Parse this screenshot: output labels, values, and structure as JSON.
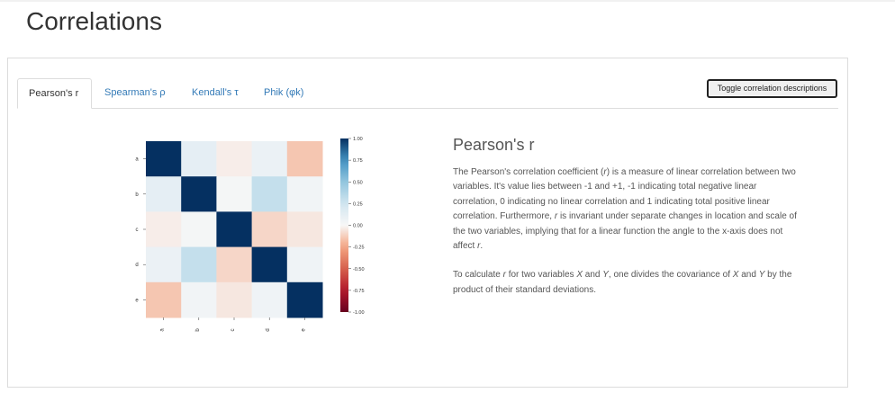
{
  "page": {
    "title": "Correlations"
  },
  "tabs": [
    {
      "label": "Pearson's r",
      "active": true
    },
    {
      "label": "Spearman's ρ",
      "active": false
    },
    {
      "label": "Kendall's τ",
      "active": false
    },
    {
      "label": "Phik (φk)",
      "active": false
    }
  ],
  "toggle_button": {
    "label": "Toggle correlation descriptions"
  },
  "description": {
    "title": "Pearson's r",
    "p1": {
      "a": "The Pearson's correlation coefficient (",
      "r1": "r",
      "b": ") is a measure of linear correlation between two variables. It's value lies between -1 and +1, -1 indicating total negative linear correlation, 0 indicating no linear correlation and 1 indicating total positive linear correlation. Furthermore, ",
      "r2": "r",
      "c": " is invariant under separate changes in location and scale of the two variables, implying that for a linear function the angle to the x-axis does not affect ",
      "r3": "r",
      "d": "."
    },
    "p2": {
      "a": "To calculate ",
      "r": "r",
      "b": " for two variables ",
      "x": "X",
      "c": " and ",
      "y1": "Y",
      "d": ", one divides the covariance of ",
      "x2": "X",
      "e": " and ",
      "y2": "Y",
      "f": " by the product of their standard deviations."
    }
  },
  "chart_data": {
    "type": "heatmap",
    "row_labels": [
      "a",
      "b",
      "c",
      "d",
      "e"
    ],
    "col_labels": [
      "a",
      "b",
      "c",
      "d",
      "e"
    ],
    "matrix": [
      [
        1.0,
        0.12,
        -0.03,
        0.08,
        -0.15
      ],
      [
        0.12,
        1.0,
        0.02,
        0.3,
        0.04
      ],
      [
        -0.03,
        0.02,
        1.0,
        -0.1,
        -0.05
      ],
      [
        0.08,
        0.3,
        -0.1,
        1.0,
        0.05
      ],
      [
        -0.15,
        0.04,
        -0.05,
        0.05,
        1.0
      ]
    ],
    "colorbar": {
      "range": [
        -1,
        1
      ],
      "ticks": [
        "1.00",
        "0.75",
        "0.50",
        "0.25",
        "0.00",
        "-0.25",
        "-0.50",
        "-0.75",
        "-1.00"
      ],
      "colormap": "RdBu"
    }
  }
}
